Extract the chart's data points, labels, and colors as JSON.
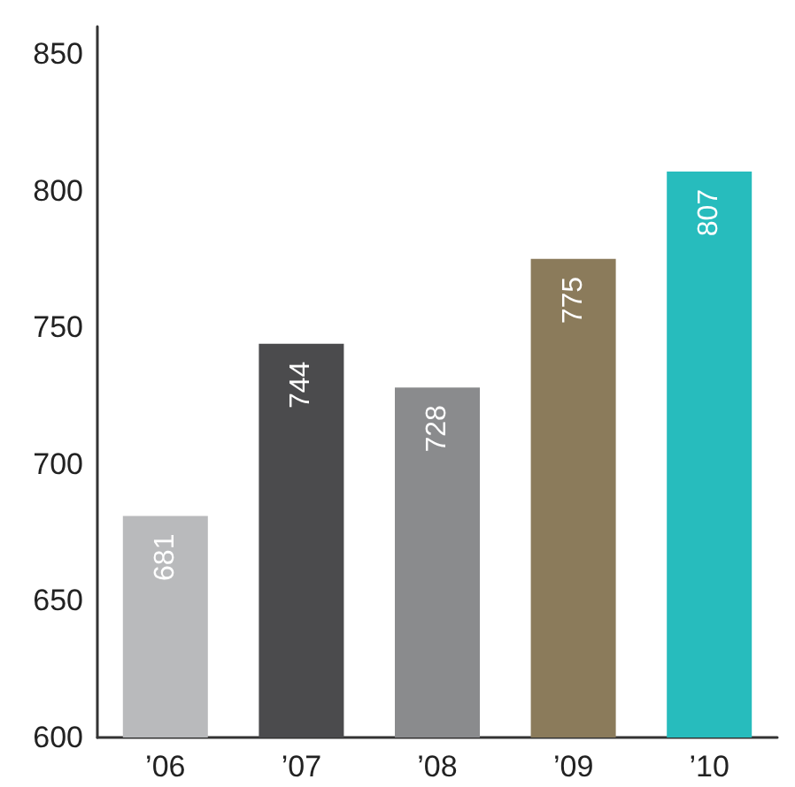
{
  "chart_data": {
    "type": "bar",
    "categories": [
      "’06",
      "’07",
      "’08",
      "’09",
      "’10"
    ],
    "values": [
      681,
      744,
      728,
      775,
      807
    ],
    "colors": [
      "#b9babc",
      "#4b4b4d",
      "#8a8b8d",
      "#8b7b5b",
      "#27bcbd"
    ],
    "ylim": [
      600,
      860
    ],
    "yticks": [
      600,
      650,
      700,
      750,
      800,
      850
    ],
    "data_labels": true,
    "grid": false
  }
}
